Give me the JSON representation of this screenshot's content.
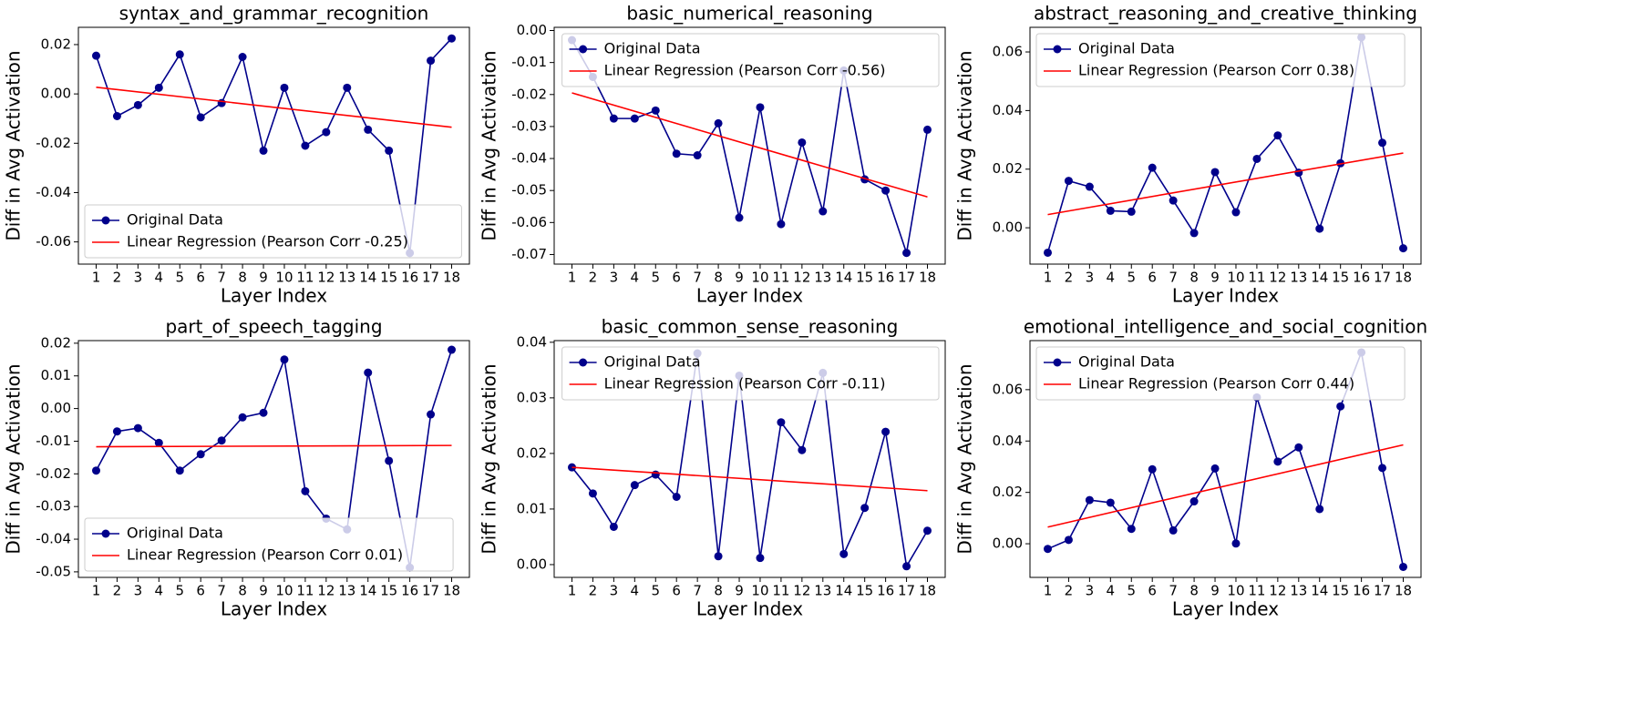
{
  "chart_data": [
    {
      "type": "line",
      "title": "syntax_and_grammar_recognition",
      "xlabel": "Layer Index",
      "ylabel": "Diff in Avg Activation",
      "x": [
        1,
        2,
        3,
        4,
        5,
        6,
        7,
        8,
        9,
        10,
        11,
        12,
        13,
        14,
        15,
        16,
        17,
        18
      ],
      "series": [
        {
          "name": "Original Data",
          "color": "#00008b",
          "marker": "o",
          "values": [
            0.0155,
            -0.009,
            -0.0045,
            0.0025,
            0.016,
            -0.0095,
            -0.0037,
            0.015,
            -0.023,
            0.0025,
            -0.021,
            -0.0155,
            0.0025,
            -0.0145,
            -0.023,
            -0.0645,
            0.0135,
            0.0225
          ]
        },
        {
          "name": "Linear Regression (Pearson Corr -0.25)",
          "color": "#ff0000",
          "x": [
            1,
            18
          ],
          "values": [
            0.0027,
            -0.0135
          ]
        }
      ],
      "xlim": [
        0.15,
        18.85
      ],
      "xticks": [
        1,
        2,
        3,
        4,
        5,
        6,
        7,
        8,
        9,
        10,
        11,
        12,
        13,
        14,
        15,
        16,
        17,
        18
      ],
      "ylim": [
        -0.069,
        0.027
      ],
      "yticks": [
        -0.06,
        -0.04,
        -0.02,
        {
          "value": 0,
          "label": "0.00"
        },
        0.02
      ],
      "legend": "lower left"
    },
    {
      "type": "line",
      "title": "basic_numerical_reasoning",
      "xlabel": "Layer Index",
      "ylabel": "Diff in Avg Activation",
      "x": [
        1,
        2,
        3,
        4,
        5,
        6,
        7,
        8,
        9,
        10,
        11,
        12,
        13,
        14,
        15,
        16,
        17,
        18
      ],
      "series": [
        {
          "name": "Original Data",
          "color": "#00008b",
          "marker": "o",
          "values": [
            -0.003,
            -0.0145,
            -0.0275,
            -0.0275,
            -0.025,
            -0.0385,
            -0.039,
            -0.029,
            -0.0585,
            -0.024,
            -0.0605,
            -0.035,
            -0.0565,
            -0.0125,
            -0.0465,
            -0.05,
            -0.0695,
            -0.031
          ]
        },
        {
          "name": "Linear Regression (Pearson Corr -0.56)",
          "color": "#ff0000",
          "x": [
            1,
            18
          ],
          "values": [
            -0.0195,
            -0.052
          ]
        }
      ],
      "xlim": [
        0.15,
        18.85
      ],
      "xticks": [
        1,
        2,
        3,
        4,
        5,
        6,
        7,
        8,
        9,
        10,
        11,
        12,
        13,
        14,
        15,
        16,
        17,
        18
      ],
      "ylim": [
        -0.073,
        0.001
      ],
      "yticks": [
        -0.07,
        -0.06,
        -0.05,
        -0.04,
        -0.03,
        -0.02,
        -0.01,
        {
          "value": 0,
          "label": "0.00"
        }
      ],
      "legend": "upper right"
    },
    {
      "type": "line",
      "title": "abstract_reasoning_and_creative_thinking",
      "xlabel": "Layer Index",
      "ylabel": "Diff in Avg Activation",
      "x": [
        1,
        2,
        3,
        4,
        5,
        6,
        7,
        8,
        9,
        10,
        11,
        12,
        13,
        14,
        15,
        16,
        17,
        18
      ],
      "series": [
        {
          "name": "Original Data",
          "color": "#00008b",
          "marker": "o",
          "values": [
            -0.0085,
            0.016,
            0.014,
            0.0058,
            0.0055,
            0.0205,
            0.0093,
            -0.0018,
            0.019,
            0.0053,
            0.0235,
            0.0315,
            0.0188,
            -0.0003,
            0.022,
            0.065,
            0.029,
            -0.007
          ]
        },
        {
          "name": "Linear Regression (Pearson Corr 0.38)",
          "color": "#ff0000",
          "x": [
            1,
            18
          ],
          "values": [
            0.0045,
            0.0255
          ]
        }
      ],
      "xlim": [
        0.15,
        18.85
      ],
      "xticks": [
        1,
        2,
        3,
        4,
        5,
        6,
        7,
        8,
        9,
        10,
        11,
        12,
        13,
        14,
        15,
        16,
        17,
        18
      ],
      "ylim": [
        -0.0124,
        0.0684
      ],
      "yticks": [
        {
          "value": 0,
          "label": "0.00"
        },
        0.02,
        0.04,
        0.06
      ],
      "legend": "upper left"
    },
    {
      "type": "line",
      "title": "part_of_speech_tagging",
      "xlabel": "Layer Index",
      "ylabel": "Diff in Avg Activation",
      "x": [
        1,
        2,
        3,
        4,
        5,
        6,
        7,
        8,
        9,
        10,
        11,
        12,
        13,
        14,
        15,
        16,
        17,
        18
      ],
      "series": [
        {
          "name": "Original Data",
          "color": "#00008b",
          "marker": "o",
          "values": [
            -0.019,
            -0.007,
            -0.006,
            -0.0105,
            -0.019,
            -0.014,
            -0.0098,
            -0.0027,
            -0.0013,
            0.015,
            -0.0253,
            -0.0337,
            -0.037,
            0.011,
            -0.016,
            -0.0487,
            -0.0018,
            0.018
          ]
        },
        {
          "name": "Linear Regression (Pearson Corr 0.01)",
          "color": "#ff0000",
          "x": [
            1,
            18
          ],
          "values": [
            -0.0117,
            -0.0113
          ]
        }
      ],
      "xlim": [
        0.15,
        18.85
      ],
      "xticks": [
        1,
        2,
        3,
        4,
        5,
        6,
        7,
        8,
        9,
        10,
        11,
        12,
        13,
        14,
        15,
        16,
        17,
        18
      ],
      "ylim": [
        -0.0517,
        0.0208
      ],
      "yticks": [
        -0.05,
        -0.04,
        -0.03,
        -0.02,
        -0.01,
        {
          "value": 0,
          "label": "0.00"
        },
        0.01,
        0.02
      ],
      "legend": "lower left"
    },
    {
      "type": "line",
      "title": "basic_common_sense_reasoning",
      "xlabel": "Layer Index",
      "ylabel": "Diff in Avg Activation",
      "x": [
        1,
        2,
        3,
        4,
        5,
        6,
        7,
        8,
        9,
        10,
        11,
        12,
        13,
        14,
        15,
        16,
        17,
        18
      ],
      "series": [
        {
          "name": "Original Data",
          "color": "#00008b",
          "marker": "o",
          "values": [
            0.0175,
            0.0128,
            0.0068,
            0.0143,
            0.0162,
            0.0122,
            0.038,
            0.0015,
            0.034,
            0.0012,
            0.0256,
            0.0206,
            0.0345,
            0.0019,
            0.0102,
            0.0239,
            -0.0003,
            0.0061
          ]
        },
        {
          "name": "Linear Regression (Pearson Corr -0.11)",
          "color": "#ff0000",
          "x": [
            1,
            18
          ],
          "values": [
            0.0175,
            0.0133
          ]
        }
      ],
      "xlim": [
        0.15,
        18.85
      ],
      "xticks": [
        1,
        2,
        3,
        4,
        5,
        6,
        7,
        8,
        9,
        10,
        11,
        12,
        13,
        14,
        15,
        16,
        17,
        18
      ],
      "ylim": [
        -0.0023,
        0.0403
      ],
      "yticks": [
        {
          "value": 0,
          "label": "0.00"
        },
        0.01,
        0.02,
        0.03,
        0.04
      ],
      "legend": "upper right"
    },
    {
      "type": "line",
      "title": "emotional_intelligence_and_social_cognition",
      "xlabel": "Layer Index",
      "ylabel": "Diff in Avg Activation",
      "x": [
        1,
        2,
        3,
        4,
        5,
        6,
        7,
        8,
        9,
        10,
        11,
        12,
        13,
        14,
        15,
        16,
        17,
        18
      ],
      "series": [
        {
          "name": "Original Data",
          "color": "#00008b",
          "marker": "o",
          "values": [
            -0.002,
            0.0015,
            0.017,
            0.016,
            0.0058,
            0.029,
            0.0052,
            0.0165,
            0.0293,
            0.0001,
            0.057,
            0.032,
            0.0375,
            0.0135,
            0.0535,
            0.0745,
            0.0295,
            -0.009
          ]
        },
        {
          "name": "Linear Regression (Pearson Corr 0.44)",
          "color": "#ff0000",
          "x": [
            1,
            18
          ],
          "values": [
            0.0065,
            0.0385
          ]
        }
      ],
      "xlim": [
        0.15,
        18.85
      ],
      "xticks": [
        1,
        2,
        3,
        4,
        5,
        6,
        7,
        8,
        9,
        10,
        11,
        12,
        13,
        14,
        15,
        16,
        17,
        18
      ],
      "ylim": [
        -0.0131,
        0.0791
      ],
      "yticks": [
        {
          "value": 0,
          "label": "0.00"
        },
        0.02,
        0.04,
        0.06
      ],
      "legend": "upper left"
    }
  ]
}
